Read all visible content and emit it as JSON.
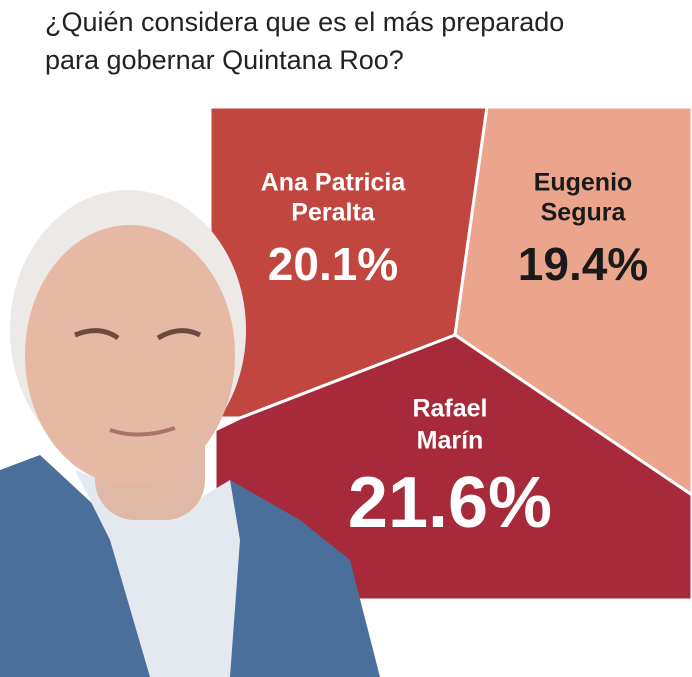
{
  "chart_data": {
    "type": "region-share",
    "title": [
      "¿Quién considera que es el más preparado",
      "para gobernar Quintana Roo?"
    ],
    "categories": [
      [
        "Ana Patricia",
        "Peralta"
      ],
      [
        "Eugenio",
        "Segura"
      ],
      [
        "Rafael",
        "Marín"
      ]
    ],
    "values": [
      20.1,
      19.4,
      21.6
    ],
    "value_labels": [
      "20.1%",
      "19.4%",
      "21.6%"
    ],
    "colors": [
      "#c1463f",
      "#eba58c",
      "#a72a3a"
    ]
  }
}
